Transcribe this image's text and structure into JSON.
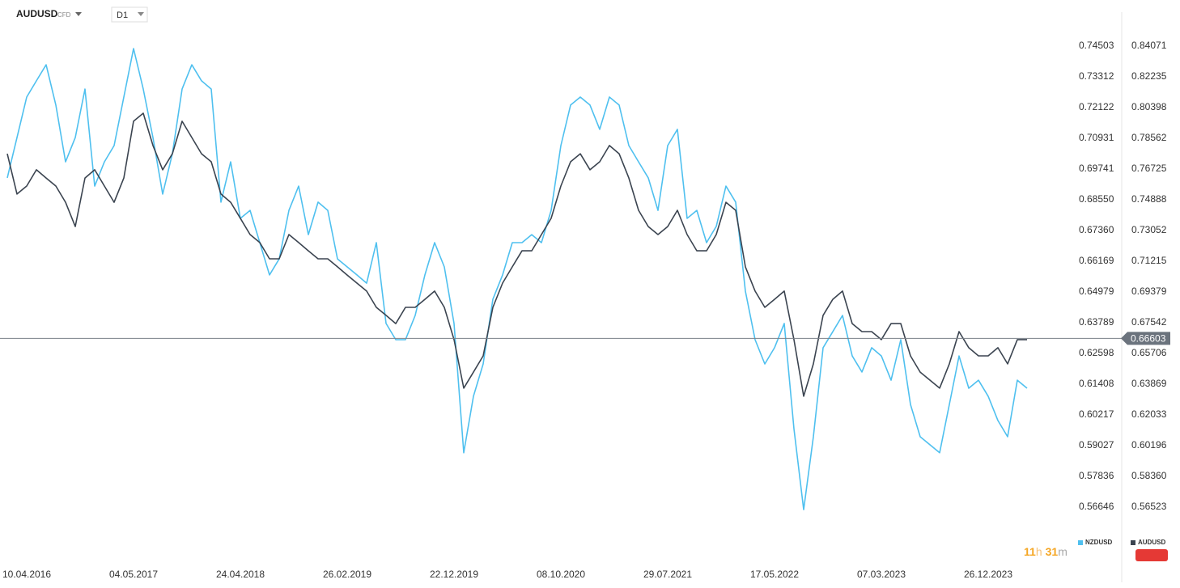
{
  "header": {
    "symbol": "AUDUSD",
    "instrument_type": "CFD",
    "timeframe": "D1"
  },
  "chart_data": {
    "type": "line",
    "categories": [
      null,
      null,
      "10.04.2016",
      null,
      null,
      null,
      null,
      null,
      null,
      null,
      null,
      null,
      null,
      "04.05.2017",
      null,
      null,
      null,
      null,
      null,
      null,
      null,
      null,
      null,
      null,
      "24.04.2018",
      null,
      null,
      null,
      null,
      null,
      null,
      null,
      null,
      null,
      null,
      "26.02.2019",
      null,
      null,
      null,
      null,
      null,
      null,
      null,
      null,
      null,
      null,
      "22.12.2019",
      null,
      null,
      null,
      null,
      null,
      null,
      null,
      null,
      null,
      null,
      "08.10.2020",
      null,
      null,
      null,
      null,
      null,
      null,
      null,
      null,
      null,
      null,
      "29.07.2021",
      null,
      null,
      null,
      null,
      null,
      null,
      null,
      null,
      null,
      null,
      "17.05.2022",
      null,
      null,
      null,
      null,
      null,
      null,
      null,
      null,
      null,
      null,
      "07.03.2023",
      null,
      null,
      null,
      null,
      null,
      null,
      null,
      null,
      null,
      null,
      "26.12.2023",
      null,
      null,
      null,
      null
    ],
    "series": [
      {
        "name": "NZDUSD",
        "color": "#4fc0ef",
        "values": [
          0.694,
          0.7096,
          0.7253,
          0.7316,
          0.7378,
          0.7222,
          0.7002,
          0.7096,
          0.7284,
          0.6908,
          0.7002,
          0.7065,
          0.7253,
          0.7441,
          0.7284,
          0.7096,
          0.6877,
          0.7034,
          0.7284,
          0.7378,
          0.7316,
          0.7284,
          0.6846,
          0.7002,
          0.6783,
          0.6814,
          0.6689,
          0.6564,
          0.6626,
          0.6814,
          0.6908,
          0.672,
          0.6846,
          0.6814,
          0.6626,
          0.6595,
          0.6564,
          0.6532,
          0.6689,
          0.6376,
          0.6313,
          0.6313,
          0.6407,
          0.6564,
          0.6689,
          0.6595,
          0.6376,
          0.5875,
          0.6094,
          0.6219,
          0.647,
          0.6564,
          0.6689,
          0.6689,
          0.672,
          0.6689,
          0.6814,
          0.7065,
          0.7222,
          0.7253,
          0.7222,
          0.7128,
          0.7253,
          0.7222,
          0.7065,
          0.7002,
          0.694,
          0.6814,
          0.7065,
          0.7128,
          0.6783,
          0.6814,
          0.6689,
          0.6752,
          0.6908,
          0.6846,
          0.6501,
          0.6313,
          0.6219,
          0.6282,
          0.6376,
          0.5968,
          0.5655,
          0.5937,
          0.6282,
          0.6344,
          0.6407,
          0.625,
          0.6188,
          0.6282,
          0.625,
          0.6156,
          0.6313,
          0.6062,
          0.5937,
          0.5906,
          0.5875,
          0.6062,
          0.625,
          0.6125,
          0.6156,
          0.6094,
          0.6,
          0.5937,
          0.6156,
          0.6125
        ]
      },
      {
        "name": "AUDUSD",
        "color": "#3b4450",
        "axis": "y2",
        "values": [
          0.7764,
          0.7523,
          0.7571,
          0.7668,
          0.7619,
          0.7571,
          0.7474,
          0.7329,
          0.7619,
          0.7668,
          0.7571,
          0.7474,
          0.7619,
          0.7958,
          0.8006,
          0.7813,
          0.7668,
          0.7764,
          0.7958,
          0.7861,
          0.7764,
          0.7716,
          0.7523,
          0.7474,
          0.7378,
          0.7281,
          0.7233,
          0.7136,
          0.7136,
          0.7281,
          0.7233,
          0.7184,
          0.7136,
          0.7136,
          0.7088,
          0.7039,
          0.6991,
          0.6943,
          0.6846,
          0.6798,
          0.6749,
          0.6846,
          0.6846,
          0.6894,
          0.6943,
          0.6846,
          0.6653,
          0.6363,
          0.6459,
          0.6556,
          0.6846,
          0.6991,
          0.7088,
          0.7184,
          0.7184,
          0.7281,
          0.7378,
          0.7571,
          0.7716,
          0.7764,
          0.7668,
          0.7716,
          0.7813,
          0.7764,
          0.7619,
          0.7426,
          0.7329,
          0.7281,
          0.7329,
          0.7426,
          0.7281,
          0.7184,
          0.7184,
          0.7281,
          0.7474,
          0.7426,
          0.7088,
          0.6943,
          0.6846,
          0.6894,
          0.6943,
          0.6653,
          0.6315,
          0.6508,
          0.6798,
          0.6894,
          0.6943,
          0.6749,
          0.6701,
          0.6701,
          0.6653,
          0.6749,
          0.6749,
          0.6556,
          0.6459,
          0.6411,
          0.6363,
          0.6508,
          0.6701,
          0.6605,
          0.6556,
          0.6556,
          0.6605,
          0.6508,
          0.6653,
          0.6653
        ]
      }
    ],
    "ylim": [
      0.54672,
      0.75662
    ],
    "yticks": [
      0.74503,
      0.73312,
      0.72122,
      0.70931,
      0.69741,
      {
        "value": 0.6855,
        "label": "0.68550"
      },
      {
        "value": 0.6736,
        "label": "0.67360"
      },
      0.66169,
      0.64979,
      0.63789,
      0.62598,
      0.61408,
      0.60217,
      0.59027,
      0.57836,
      0.56646
    ],
    "y2lim": [
      0.53478,
      0.85859
    ],
    "y2ticks": [
      0.84071,
      0.82235,
      0.80398,
      0.78562,
      0.76725,
      0.74888,
      0.73052,
      0.71215,
      0.69379,
      0.67542,
      0.65706,
      0.63869,
      0.62033,
      0.60196,
      {
        "value": 0.5836,
        "label": "0.58360"
      },
      0.56523
    ],
    "last_price": 0.66603
  },
  "countdown": {
    "hours": "11",
    "hours_unit": "h",
    "minutes": "31",
    "minutes_unit": "m"
  }
}
